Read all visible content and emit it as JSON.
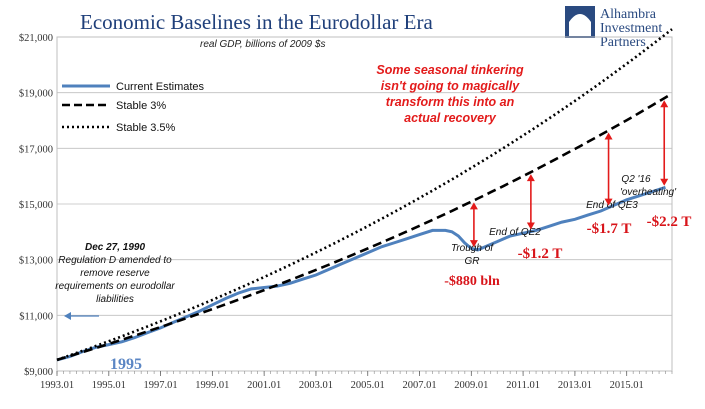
{
  "chart_data": {
    "type": "line",
    "title": "Economic Baselines in the Eurodollar Era",
    "subtitle": "real GDP, billions of 2009 $s",
    "brand": [
      "Alhambra",
      "Investment",
      "Partners"
    ],
    "ylim": [
      9000,
      21000
    ],
    "xlim": [
      1993.0,
      2016.75
    ],
    "y_ticks": [
      9000,
      11000,
      13000,
      15000,
      17000,
      19000,
      21000
    ],
    "y_tick_labels": [
      "$9,000",
      "$11,000",
      "$13,000",
      "$15,000",
      "$17,000",
      "$19,000",
      "$21,000"
    ],
    "x_tick_labels": [
      "1993.01",
      "1995.01",
      "1997.01",
      "1999.01",
      "2001.01",
      "2003.01",
      "2005.01",
      "2007.01",
      "2009.01",
      "2011.01",
      "2013.01",
      "2015.01"
    ],
    "x_tick_values": [
      1993,
      1995,
      1997,
      1999,
      2001,
      2003,
      2005,
      2007,
      2009,
      2011,
      2013,
      2015
    ],
    "series": [
      {
        "name": "Current Estimates",
        "style": "solid",
        "color": "#4f81bd",
        "x": [
          1993.0,
          1993.5,
          1994.0,
          1994.5,
          1995.0,
          1995.5,
          1996.0,
          1996.5,
          1997.0,
          1997.5,
          1998.0,
          1998.5,
          1999.0,
          1999.5,
          2000.0,
          2000.5,
          2001.0,
          2001.5,
          2002.0,
          2002.5,
          2003.0,
          2003.5,
          2004.0,
          2004.5,
          2005.0,
          2005.5,
          2006.0,
          2006.5,
          2007.0,
          2007.5,
          2008.0,
          2008.25,
          2008.5,
          2008.75,
          2009.0,
          2009.25,
          2009.5,
          2010.0,
          2010.5,
          2011.0,
          2011.5,
          2012.0,
          2012.5,
          2013.0,
          2013.5,
          2014.0,
          2014.5,
          2015.0,
          2015.5,
          2016.0,
          2016.5
        ],
        "values": [
          9400,
          9520,
          9700,
          9850,
          9950,
          10050,
          10200,
          10380,
          10550,
          10750,
          10950,
          11150,
          11380,
          11600,
          11800,
          11950,
          12000,
          12050,
          12150,
          12300,
          12450,
          12650,
          12850,
          13050,
          13250,
          13450,
          13600,
          13750,
          13900,
          14050,
          14050,
          14000,
          13850,
          13600,
          13400,
          13350,
          13450,
          13650,
          13850,
          13950,
          14050,
          14200,
          14350,
          14450,
          14600,
          14750,
          14950,
          15150,
          15300,
          15450,
          15600
        ]
      },
      {
        "name": "Stable 3%",
        "style": "dashed",
        "color": "#000000",
        "start_value": 9400,
        "start_x": 1993.0,
        "growth": 0.03
      },
      {
        "name": "Stable 3.5%",
        "style": "dotted",
        "color": "#000000",
        "start_value": 9400,
        "start_x": 1993.0,
        "growth": 0.035
      }
    ],
    "legend": [
      "Current Estimates",
      "Stable 3%",
      "Stable 3.5%"
    ],
    "legend_position": "top-left",
    "annotations": {
      "headline": [
        "Some seasonal tinkering",
        "isn't going to magically",
        "transform this into an",
        "actual recovery"
      ],
      "dec_1990": [
        "Dec 27, 1990",
        "Regulation D amended to",
        "remove reserve",
        "requirements on eurodollar",
        "liabilities"
      ],
      "year_1995": "1995",
      "trough_label": [
        "Trough of",
        "GR"
      ],
      "qe2_label": "End of QE2",
      "qe3_label": "End of QE3",
      "q2_label": [
        "Q2 '16",
        "'overheating'"
      ],
      "gap_880": "-$880 bln",
      "gap_1_2": "-$1.2 T",
      "gap_1_7": "-$1.7 T",
      "gap_2_2": "-$2.2 T",
      "gap_arrows": [
        {
          "x": 2009.1,
          "label": "trough"
        },
        {
          "x": 2011.3,
          "label": "qe2"
        },
        {
          "x": 2014.3,
          "label": "qe3"
        },
        {
          "x": 2016.45,
          "label": "q2-16"
        }
      ]
    },
    "colors": {
      "accent_red": "#e31b1b",
      "title_blue": "#1f3f7a",
      "series_blue": "#4f81bd",
      "grid": "#bfbfbf"
    }
  }
}
